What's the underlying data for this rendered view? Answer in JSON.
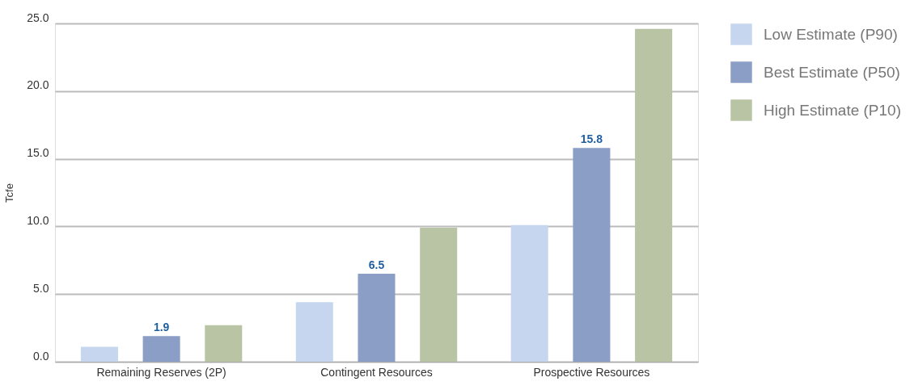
{
  "chart_data": {
    "type": "bar",
    "ylabel": "Tcfe",
    "categories": [
      "Remaining Reserves (2P)",
      "Contingent Resources",
      "Prospective Resources"
    ],
    "series": [
      {
        "name": "Low Estimate (P90)",
        "color": "#c5d6ee",
        "values": [
          1.1,
          4.4,
          10.1
        ]
      },
      {
        "name": "Best Estimate (P50)",
        "color": "#8a9ec6",
        "values": [
          1.9,
          6.5,
          15.8
        ],
        "value_labels": [
          "1.9",
          "6.5",
          "15.8"
        ]
      },
      {
        "name": "High Estimate (P10)",
        "color": "#b8c4a4",
        "values": [
          2.7,
          9.9,
          24.6
        ]
      }
    ],
    "ylim": [
      0,
      25
    ],
    "yticks": [
      {
        "value": 0,
        "label": "0.0"
      },
      {
        "value": 5,
        "label": "5.0"
      },
      {
        "value": 10,
        "label": "10.0"
      },
      {
        "value": 15,
        "label": "15.0"
      },
      {
        "value": 20,
        "label": "20.0"
      },
      {
        "value": 25,
        "label": "25.0"
      }
    ],
    "grid": "y",
    "legend": "right"
  }
}
